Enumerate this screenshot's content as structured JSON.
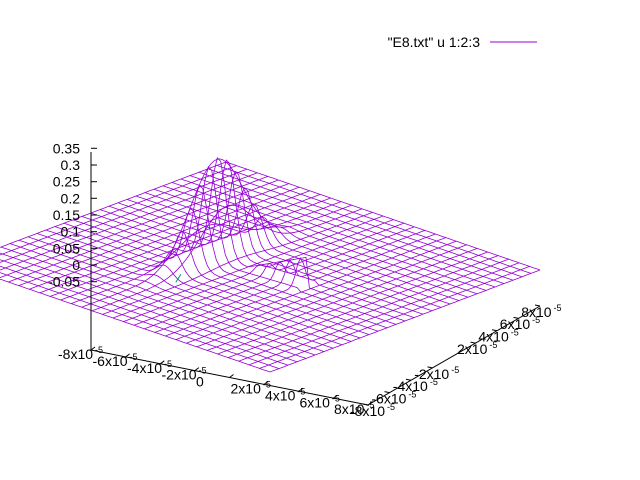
{
  "legend": {
    "label": "\"E8.txt\" u 1:2:3",
    "color": "#9400d3"
  },
  "chart_data": {
    "type": "surface",
    "title": "",
    "xlabel": "",
    "ylabel": "",
    "zlabel": "",
    "line_color": "#9400d3",
    "secondary_line_color": "#009e73",
    "grid": false,
    "legend_position": "top-right",
    "x_range": [
      -8e-05,
      8e-05
    ],
    "y_range": [
      -8e-05,
      8e-05
    ],
    "z_range": [
      -0.05,
      0.35
    ],
    "z_ticks": [
      "0.35",
      "0.3",
      "0.25",
      "0.2",
      "0.15",
      "0.1",
      "0.05",
      "0",
      "-0.05"
    ],
    "x_ticks": [
      {
        "mant": "-8x10",
        "exp": "-5"
      },
      {
        "mant": "-6x10",
        "exp": "-5"
      },
      {
        "mant": "-4x10",
        "exp": "-5"
      },
      {
        "mant": "-2x10",
        "exp": "-5"
      },
      {
        "mant": "0",
        "exp": ""
      },
      {
        "mant": "2x10",
        "exp": "-5"
      },
      {
        "mant": "4x10",
        "exp": "-5"
      },
      {
        "mant": "6x10",
        "exp": "-5"
      },
      {
        "mant": "8x10",
        "exp": "-5"
      }
    ],
    "y_ticks": [
      {
        "mant": "-8x10",
        "exp": "-5"
      },
      {
        "mant": "-6x10",
        "exp": "-5"
      },
      {
        "mant": "-4x10",
        "exp": "-5"
      },
      {
        "mant": "-2x10",
        "exp": "-5"
      },
      {
        "mant": "2x10",
        "exp": "-5"
      },
      {
        "mant": "4x10",
        "exp": "-5"
      },
      {
        "mant": "6x10",
        "exp": "-5"
      },
      {
        "mant": "8x10",
        "exp": "-5"
      }
    ],
    "surface": {
      "grid_points": 31,
      "baseline": 0,
      "features": [
        {
          "kind": "gaussian_peak",
          "x": -1.5e-05,
          "y": 0,
          "height": 0.3,
          "width_x": 5.5e-06,
          "width_y": 2.2e-05
        },
        {
          "kind": "ridge",
          "x_start": 0,
          "x_end": 3e-05,
          "y": 0,
          "height": 0.09,
          "width_y": 3.5e-06
        }
      ]
    }
  }
}
